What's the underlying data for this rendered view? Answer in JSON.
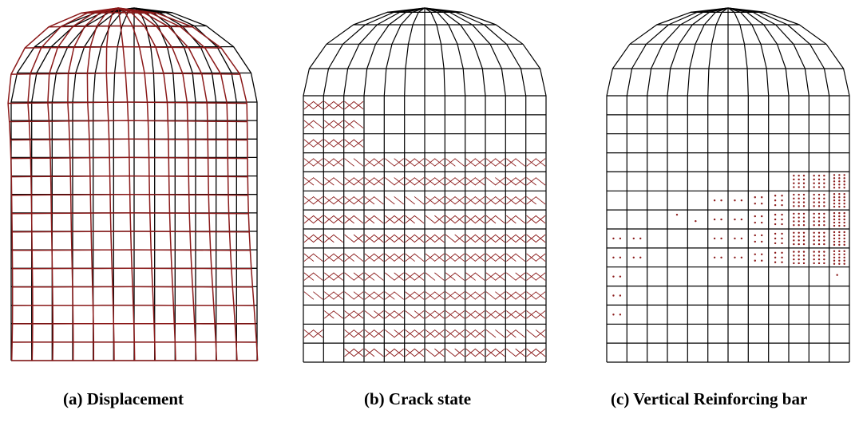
{
  "colors": {
    "mesh": "#000000",
    "highlight": "#8b1a1a",
    "background": "#ffffff"
  },
  "panels": [
    {
      "id": "a",
      "caption": "(a) Displacement",
      "content": "deformed-mesh"
    },
    {
      "id": "b",
      "caption": "(b) Crack state",
      "content": "crack-marks"
    },
    {
      "id": "c",
      "caption": "(c) Vertical Reinforcing bar",
      "content": "yield-marks"
    }
  ]
}
